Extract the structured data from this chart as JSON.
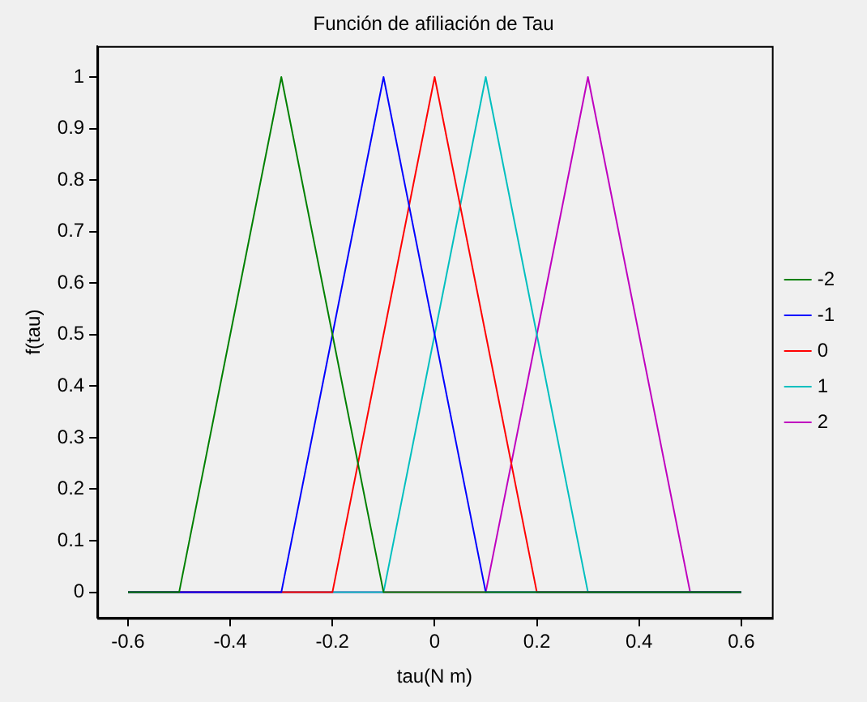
{
  "chart_data": {
    "type": "line",
    "title": "Función de afiliación de Tau",
    "xlabel": "tau(N m)",
    "ylabel": "f(tau)",
    "xlim": [
      -0.66,
      0.66
    ],
    "ylim": [
      -0.05,
      1.06
    ],
    "xticks": [
      -0.6,
      -0.4,
      -0.2,
      0,
      0.2,
      0.4,
      0.6
    ],
    "yticks": [
      0,
      0.1,
      0.2,
      0.3,
      0.4,
      0.5,
      0.6,
      0.7,
      0.8,
      0.9,
      1
    ],
    "grid": false,
    "legend": "right",
    "marker": "none",
    "line_style": "solid",
    "series": [
      {
        "name": "-2",
        "color": "#008000",
        "x": [
          -0.6,
          -0.5,
          -0.3,
          -0.1,
          0.6
        ],
        "values": [
          0,
          0,
          1,
          0,
          0
        ]
      },
      {
        "name": "-1",
        "color": "#0000ff",
        "x": [
          -0.6,
          -0.3,
          -0.1,
          0.1,
          0.6
        ],
        "values": [
          0,
          0,
          1,
          0,
          0
        ]
      },
      {
        "name": "0",
        "color": "#ff0000",
        "x": [
          -0.6,
          -0.2,
          0,
          0.2,
          0.6
        ],
        "values": [
          0,
          0,
          1,
          0,
          0
        ]
      },
      {
        "name": "1",
        "color": "#00bfbf",
        "x": [
          -0.6,
          -0.1,
          0.1,
          0.3,
          0.6
        ],
        "values": [
          0,
          0,
          1,
          0,
          0
        ]
      },
      {
        "name": "2",
        "color": "#bf00bf",
        "x": [
          -0.6,
          0.1,
          0.3,
          0.5,
          0.6
        ],
        "values": [
          0,
          0,
          1,
          0,
          0
        ]
      }
    ]
  }
}
